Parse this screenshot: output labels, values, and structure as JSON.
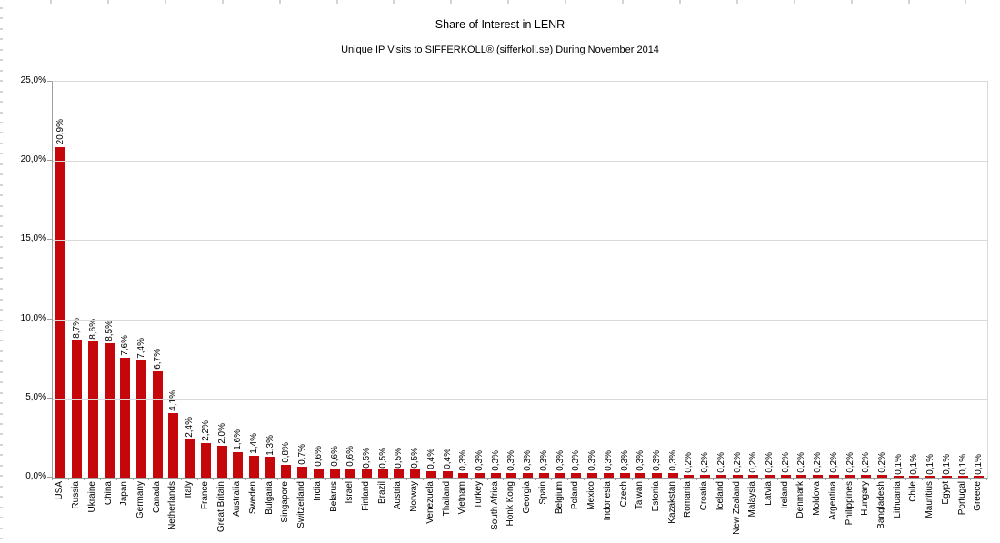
{
  "header": {
    "title": "Share of Interest in LENR",
    "subtitle": "Unique IP Visits to SIFFERKOLL® (sifferkoll.se) During November 2014"
  },
  "chart_data": {
    "type": "bar",
    "title": "Share of Interest in LENR",
    "subtitle": "Unique IP Visits to SIFFERKOLL® (sifferkoll.se) During November 2014",
    "categories": [
      "USA",
      "Russia",
      "Ukraine",
      "China",
      "Japan",
      "Germany",
      "Canada",
      "Netherlands",
      "Italy",
      "France",
      "Great Britain",
      "Australia",
      "Sweden",
      "Bulgaria",
      "Singapore",
      "Switzerland",
      "India",
      "Belarus",
      "Israel",
      "Finland",
      "Brazil",
      "Austria",
      "Norway",
      "Venezuela",
      "Thailand",
      "Vietnam",
      "Turkey",
      "South Africa",
      "Honk Kong",
      "Georgia",
      "Spain",
      "Belgium",
      "Poland",
      "Mexico",
      "Indonesia",
      "Czech",
      "Taiwan",
      "Estonia",
      "Kazakstan",
      "Romania",
      "Croatia",
      "Iceland",
      "New Zealand",
      "Malaysia",
      "Latvia",
      "Ireland",
      "Denmark",
      "Moldova",
      "Argentina",
      "Philippines",
      "Hungary",
      "Bangladesh",
      "Lithuania",
      "Chile",
      "Mauritius",
      "Egypt",
      "Portugal",
      "Greece"
    ],
    "values": [
      20.9,
      8.7,
      8.6,
      8.5,
      7.6,
      7.4,
      6.7,
      4.1,
      2.4,
      2.2,
      2.0,
      1.6,
      1.4,
      1.3,
      0.8,
      0.7,
      0.6,
      0.6,
      0.6,
      0.5,
      0.5,
      0.5,
      0.5,
      0.4,
      0.4,
      0.3,
      0.3,
      0.3,
      0.3,
      0.3,
      0.3,
      0.3,
      0.3,
      0.3,
      0.3,
      0.3,
      0.3,
      0.3,
      0.3,
      0.2,
      0.2,
      0.2,
      0.2,
      0.2,
      0.2,
      0.2,
      0.2,
      0.2,
      0.2,
      0.2,
      0.2,
      0.2,
      0.1,
      0.1,
      0.1,
      0.1,
      0.1,
      0.1
    ],
    "value_labels": [
      "20,9%",
      "8,7%",
      "8,6%",
      "8,5%",
      "7,6%",
      "7,4%",
      "6,7%",
      "4,1%",
      "2,4%",
      "2,2%",
      "2,0%",
      "1,6%",
      "1,4%",
      "1,3%",
      "0,8%",
      "0,7%",
      "0,6%",
      "0,6%",
      "0,6%",
      "0,5%",
      "0,5%",
      "0,5%",
      "0,5%",
      "0,4%",
      "0,4%",
      "0,3%",
      "0,3%",
      "0,3%",
      "0,3%",
      "0,3%",
      "0,3%",
      "0,3%",
      "0,3%",
      "0,3%",
      "0,3%",
      "0,3%",
      "0,3%",
      "0,3%",
      "0,3%",
      "0,2%",
      "0,2%",
      "0,2%",
      "0,2%",
      "0,2%",
      "0,2%",
      "0,2%",
      "0,2%",
      "0,2%",
      "0,2%",
      "0,2%",
      "0,2%",
      "0,2%",
      "0,1%",
      "0,1%",
      "0,1%",
      "0,1%",
      "0,1%",
      "0,1%"
    ],
    "y_axis": {
      "ticks": [
        "25,0%",
        "20,0%",
        "15,0%",
        "10,0%",
        "5,0%",
        "0,0%"
      ],
      "min": 0,
      "max": 25,
      "step": 5,
      "format": "percent-comma"
    },
    "grid": true,
    "legend": "none",
    "bar_color": "#c5070c",
    "gridline_color": "#d9d9d9",
    "axis_color": "#9e9e9e",
    "text_color": "#000000",
    "background_color": "#ffffff"
  }
}
